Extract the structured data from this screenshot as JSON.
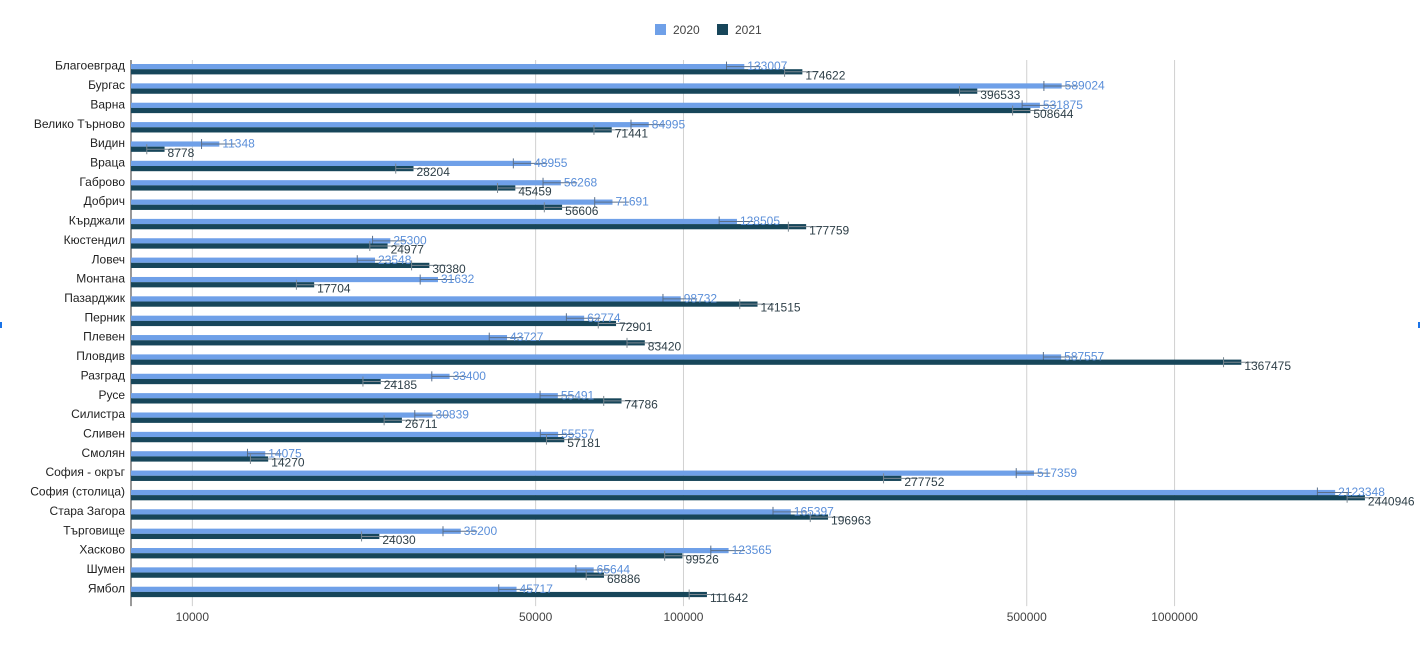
{
  "chart_data": {
    "type": "bar",
    "orientation": "horizontal",
    "x_scale": "log",
    "xlim": [
      7500,
      2500000
    ],
    "x_ticks": [
      10000,
      50000,
      100000,
      500000,
      1000000
    ],
    "grid": true,
    "legend_position": "top",
    "error_bars": true,
    "categories": [
      "Благоевград",
      "Бургас",
      "Варна",
      "Велико Търново",
      "Видин",
      "Враца",
      "Габрово",
      "Добрич",
      "Кърджали",
      "Кюстендил",
      "Ловеч",
      "Монтана",
      "Пазарджик",
      "Перник",
      "Плевен",
      "Пловдив",
      "Разград",
      "Русе",
      "Силистра",
      "Сливен",
      "Смолян",
      "София - окръг",
      "София (столица)",
      "Стара Загора",
      "Търговище",
      "Хасково",
      "Шумен",
      "Ямбол"
    ],
    "series": [
      {
        "name": "2020",
        "color": "#6fa0e8",
        "values": [
          133007,
          589024,
          531875,
          84995,
          11348,
          48955,
          56268,
          71691,
          128505,
          25300,
          23548,
          31632,
          98732,
          62774,
          43727,
          587557,
          33400,
          55491,
          30839,
          55557,
          14075,
          517359,
          2123348,
          165397,
          35200,
          123565,
          65644,
          45717
        ]
      },
      {
        "name": "2021",
        "color": "#17465a",
        "values": [
          174622,
          396533,
          508644,
          71441,
          8778,
          28204,
          45459,
          56606,
          177759,
          24977,
          30380,
          17704,
          141515,
          72901,
          83420,
          1367475,
          24185,
          74786,
          26711,
          57181,
          14270,
          277752,
          2440946,
          196963,
          24030,
          99526,
          68886,
          111642
        ]
      }
    ]
  }
}
